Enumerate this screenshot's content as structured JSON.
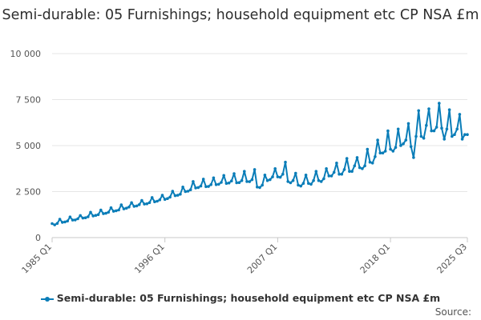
{
  "chart_data": {
    "type": "line",
    "title": "Semi-durable: 05 Furnishings; household equipment etc CP NSA £m",
    "y_ticks": [
      "0",
      "2 500",
      "5 000",
      "7 500",
      "10 000"
    ],
    "ylim": [
      0,
      10000
    ],
    "x_ticks": [
      "1985 Q1",
      "1996 Q1",
      "2007 Q1",
      "2018 Q1",
      "2025 Q3"
    ],
    "x_range": [
      "1985 Q1",
      "2025 Q3"
    ],
    "grid": true,
    "legend_position": "bottom",
    "colors": {
      "series": "#0a7db8",
      "grid": "#e6e6e6"
    },
    "series": [
      {
        "name": "Semi-durable: 05 Furnishings; household equipment etc CP NSA £m",
        "start": "1985 Q1",
        "frequency": "quarterly",
        "values": [
          760,
          690,
          770,
          1000,
          830,
          850,
          900,
          1120,
          950,
          960,
          1020,
          1200,
          1060,
          1080,
          1130,
          1380,
          1180,
          1210,
          1250,
          1500,
          1300,
          1320,
          1380,
          1620,
          1430,
          1460,
          1500,
          1780,
          1560,
          1600,
          1660,
          1900,
          1700,
          1720,
          1790,
          2020,
          1820,
          1840,
          1900,
          2180,
          1950,
          1980,
          2050,
          2300,
          2080,
          2120,
          2200,
          2520,
          2280,
          2300,
          2360,
          2750,
          2500,
          2520,
          2600,
          3050,
          2700,
          2720,
          2800,
          3180,
          2770,
          2780,
          2880,
          3250,
          2880,
          2900,
          3000,
          3380,
          2950,
          2970,
          3080,
          3480,
          2980,
          2990,
          3100,
          3600,
          3050,
          3040,
          3150,
          3700,
          2750,
          2720,
          2850,
          3400,
          3100,
          3150,
          3300,
          3750,
          3300,
          3280,
          3450,
          4100,
          3050,
          2980,
          3100,
          3500,
          2850,
          2800,
          2950,
          3400,
          2950,
          2900,
          3100,
          3600,
          3100,
          3050,
          3200,
          3750,
          3350,
          3350,
          3550,
          4050,
          3450,
          3450,
          3700,
          4300,
          3600,
          3600,
          3900,
          4350,
          3800,
          3750,
          3900,
          4800,
          4100,
          4050,
          4400,
          5300,
          4600,
          4600,
          4700,
          5800,
          4800,
          4700,
          4900,
          5900,
          5000,
          5100,
          5300,
          6200,
          4950,
          4350,
          5500,
          6900,
          5500,
          5400,
          6100,
          7000,
          5800,
          5800,
          6000,
          7300,
          5950,
          5350,
          5900,
          6950,
          5500,
          5600,
          5900,
          6700,
          5350,
          5600,
          5600
        ]
      }
    ]
  },
  "legend": {
    "label": "Semi-durable: 05 Furnishings; household equipment etc CP NSA £m"
  },
  "source": {
    "label": "Source:"
  }
}
